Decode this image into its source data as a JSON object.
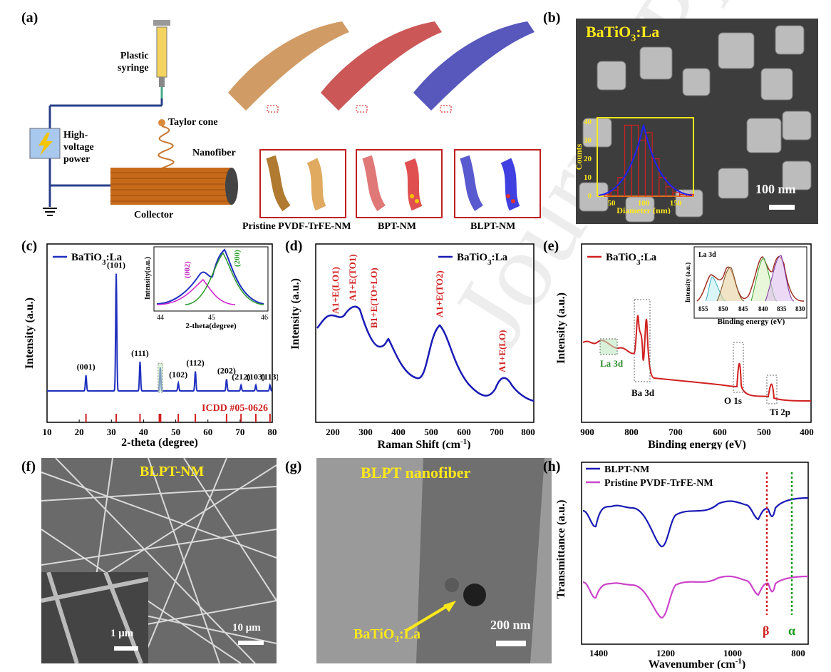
{
  "panels": {
    "a": {
      "letter": "(a)",
      "labels": {
        "plastic_syringe_1": "Plastic",
        "plastic_syringe_2": "syringe",
        "taylor_cone": "Taylor cone",
        "nanofiber": "Nanofiber",
        "power_1": "High-",
        "power_2": "voltage",
        "power_3": "power",
        "collector": "Collector",
        "mem1": "Pristine PVDF-TrFE-NM",
        "mem2": "BPT-NM",
        "mem3": "BLPT-NM"
      },
      "colors": {
        "mem1": "#c98a4a",
        "mem2": "#c23a3a",
        "mem3": "#3a3ab0"
      }
    },
    "b": {
      "letter": "(b)",
      "title_main": "BaTiO",
      "title_sub": "3",
      "title_tail": ":La",
      "scale": "100 nm",
      "inset": {
        "ylabel": "Counts",
        "xlabel": "Diameter (nm)",
        "yticks": [
          "0",
          "10",
          "20",
          "30",
          "40"
        ],
        "xticks": [
          "50",
          "100",
          "150"
        ],
        "histogram": {
          "bins": [
            40,
            50,
            60,
            70,
            80,
            90,
            100,
            110,
            120,
            130,
            140,
            150,
            160,
            170,
            180
          ],
          "counts": [
            0,
            1,
            3,
            10,
            38,
            38,
            30,
            34,
            20,
            10,
            5,
            2,
            1,
            1
          ]
        }
      }
    },
    "c": {
      "letter": "(c)",
      "legend": "BaTiO3:La",
      "legend_main": "BaTiO",
      "legend_sub": "3",
      "legend_tail": ":La",
      "xlabel": "2-theta (degree)",
      "ylabel": "Intensity (a.u.)",
      "xticks": [
        "10",
        "20",
        "30",
        "40",
        "50",
        "60",
        "70",
        "80"
      ],
      "ref": "ICDD #05-0626",
      "peaks": [
        {
          "x": 22.1,
          "h": 0.08,
          "label": "(001)"
        },
        {
          "x": 31.5,
          "h": 0.6,
          "label": "(101)"
        },
        {
          "x": 38.9,
          "h": 0.15,
          "label": "(111)"
        },
        {
          "x": 45.2,
          "h": 0.12,
          "label": ""
        },
        {
          "x": 50.8,
          "h": 0.04,
          "label": "(102)"
        },
        {
          "x": 56.1,
          "h": 0.1,
          "label": "(112)"
        },
        {
          "x": 65.8,
          "h": 0.06,
          "label": "(202)"
        },
        {
          "x": 70.3,
          "h": 0.03,
          "label": "(212)"
        },
        {
          "x": 74.9,
          "h": 0.03,
          "label": "(103)"
        },
        {
          "x": 79.3,
          "h": 0.03,
          "label": "(113)"
        }
      ],
      "ref_lines": [
        22.1,
        31.5,
        38.9,
        44.9,
        45.3,
        50.8,
        56.1,
        65.8,
        70.3,
        74.9,
        79.3
      ],
      "inset": {
        "xlabel": "2-theta(degree)",
        "ylabel": "Intensity(a.u.)",
        "xticks": [
          "44",
          "45",
          "46"
        ],
        "p1": "(002)",
        "p2": "(200)"
      }
    },
    "d": {
      "letter": "(d)",
      "legend_main": "BaTiO",
      "legend_sub": "3",
      "legend_tail": ":La",
      "xlabel": "Raman Shift (cm",
      "xlabel_sup": "-1",
      "xlabel_tail": ")",
      "ylabel": "Intensity (a.u.)",
      "xticks": [
        "200",
        "300",
        "400",
        "500",
        "600",
        "700",
        "800"
      ],
      "modes": [
        "A1+E(LO1)",
        "A1+E(TO1)",
        "B1+E(TO+LO)",
        "A1+E(TO2)",
        "A1+E(LO)"
      ]
    },
    "e": {
      "letter": "(e)",
      "legend_main": "BaTiO",
      "legend_sub": "3",
      "legend_tail": ":La",
      "xlabel": "Binding energy (eV)",
      "ylabel": "Intensity (a.u.)",
      "xticks": [
        "900",
        "800",
        "700",
        "600",
        "500",
        "400"
      ],
      "annotations": {
        "la": "La 3d",
        "ba": "Ba 3d",
        "o": "O 1s",
        "ti": "Ti 2p"
      },
      "inset": {
        "title": "La 3d",
        "xlabel": "Binding energy (eV)",
        "ylabel": "Intensity (a.u.)",
        "xticks": [
          "855",
          "850",
          "845",
          "840",
          "835",
          "830"
        ]
      }
    },
    "f": {
      "letter": "(f)",
      "title": "BLPT-NM",
      "scale_small": "1 μm",
      "scale_big": "10 μm"
    },
    "g": {
      "letter": "(g)",
      "title": "BLPT nanofiber",
      "particle_main": "BaTiO",
      "particle_sub": "3",
      "particle_tail": ":La",
      "scale": "200 nm"
    },
    "h": {
      "letter": "(h)",
      "legend1": "BLPT-NM",
      "legend2": "Pristine PVDF-TrFE-NM",
      "xlabel": "Wavenumber (cm",
      "xlabel_sup": "-1",
      "xlabel_tail": ")",
      "ylabel": "Transmittance (a.u.)",
      "xticks": [
        "1400",
        "1200",
        "1000",
        "800"
      ],
      "beta": "β",
      "alpha": "α",
      "colors": {
        "s1": "#1a1ab5",
        "s2": "#cc44cc"
      }
    }
  },
  "watermark": "Journal Pre-proof",
  "colors": {
    "xrd": "#1f2fbf",
    "raman": "#1a1ab5",
    "xps": "#d02020",
    "label_red": "#d02020",
    "yellow": "#ffe81a"
  }
}
